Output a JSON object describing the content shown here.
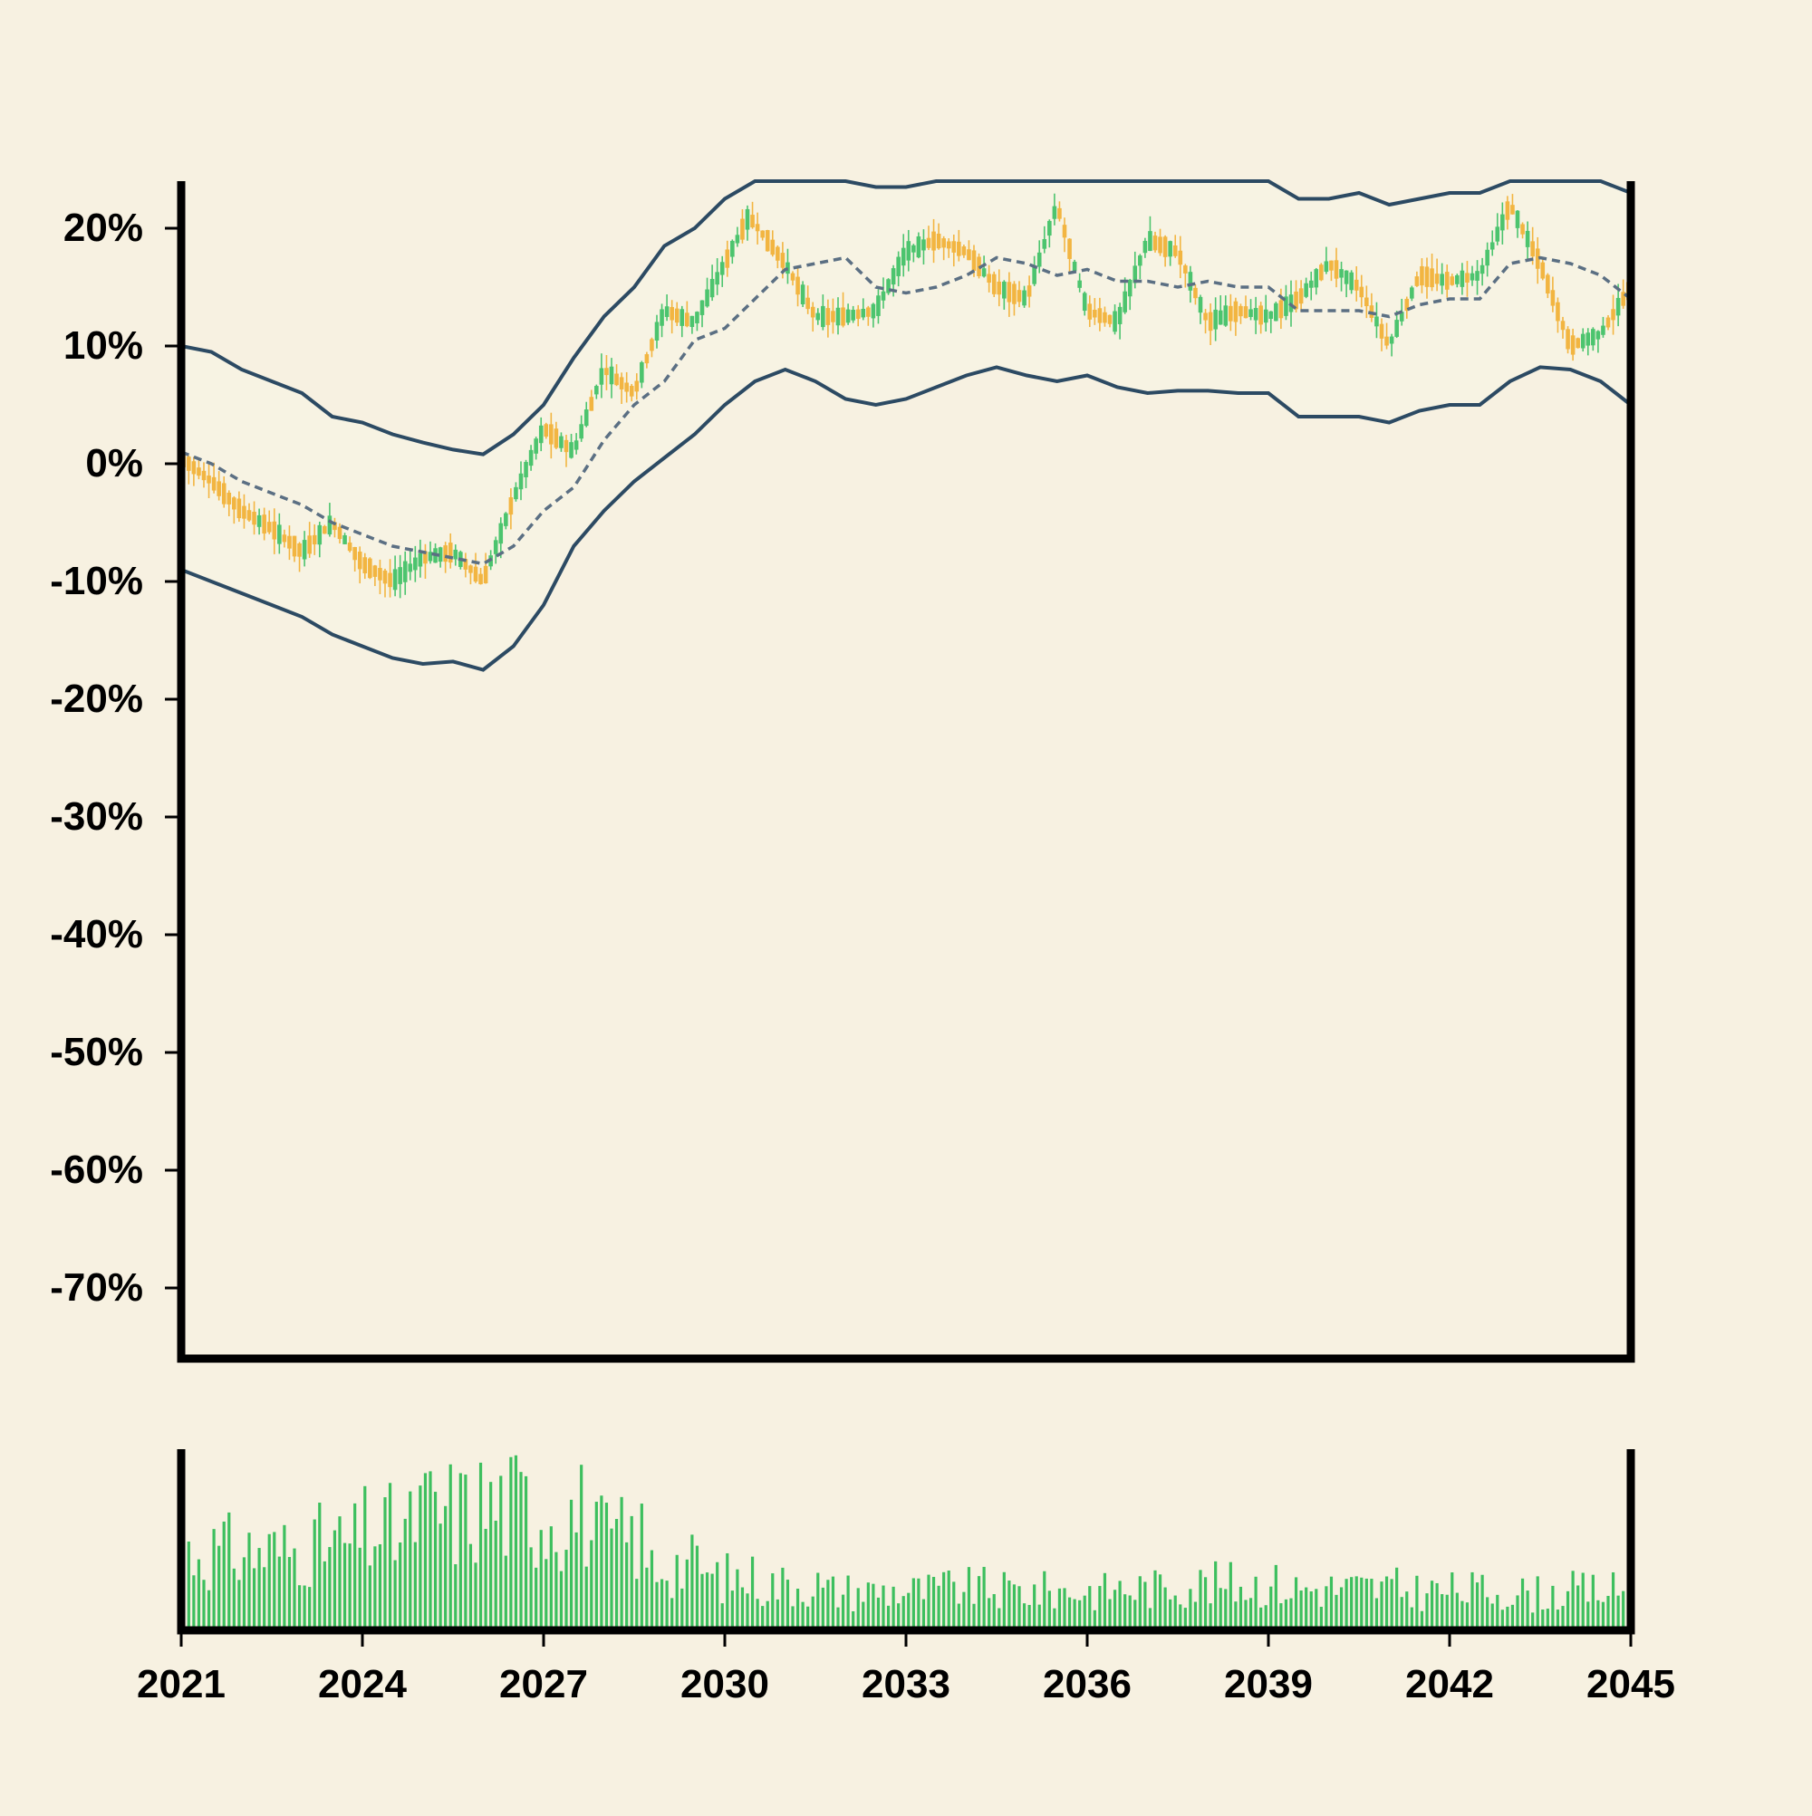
{
  "chart_data": [
    {
      "type": "candlestick",
      "panel": "price",
      "title": "",
      "xlabel": "",
      "ylabel": "",
      "ytick_labels": [
        "-70%",
        "-60%",
        "-50%",
        "-40%",
        "-30%",
        "-20%",
        "-10%",
        "0%",
        "10%",
        "20%"
      ],
      "yticks": [
        -70,
        -60,
        -50,
        -40,
        -30,
        -20,
        -10,
        0,
        10,
        20
      ],
      "ylim": [
        -76,
        24
      ],
      "xlim": [
        2021,
        2045
      ],
      "grid": false,
      "colors": {
        "up": "#4cc46e",
        "down": "#f2b541",
        "band": "#2c4a63",
        "midline": "#5b6f83",
        "band_fill": "#f7f3e3",
        "background": "#f7f1e1",
        "axis": "#000000"
      },
      "price_path": {
        "x": [
          2021.0,
          2021.5,
          2022.0,
          2022.5,
          2023.0,
          2023.5,
          2024.0,
          2024.5,
          2025.0,
          2025.5,
          2026.0,
          2026.5,
          2027.0,
          2027.5,
          2028.0,
          2028.5,
          2029.0,
          2029.5,
          2030.0,
          2030.4,
          2031.0,
          2031.5,
          2032.0,
          2032.5,
          2033.0,
          2033.5,
          2034.0,
          2034.5,
          2035.0,
          2035.5,
          2036.0,
          2036.5,
          2037.0,
          2037.5,
          2038.0,
          2038.5,
          2039.0,
          2039.5,
          2040.0,
          2040.5,
          2041.0,
          2041.5,
          2042.0,
          2042.5,
          2043.0,
          2043.5,
          2044.0,
          2044.5,
          2045.0
        ],
        "y": [
          0.5,
          -1.5,
          -4,
          -5.5,
          -7.5,
          -5,
          -8.5,
          -10,
          -8,
          -7.5,
          -10,
          -3,
          3,
          1,
          8,
          6,
          13,
          12,
          17,
          21,
          17,
          12.5,
          12.5,
          13,
          18,
          19,
          18,
          15,
          14,
          22,
          13,
          12,
          19,
          18,
          12,
          13,
          12.5,
          14,
          17,
          15,
          10,
          16,
          15.5,
          16,
          22,
          17,
          10,
          11,
          15
        ]
      },
      "mid_line": {
        "x": [
          2021.0,
          2021.5,
          2022.0,
          2022.5,
          2023.0,
          2023.5,
          2024.0,
          2024.5,
          2025.0,
          2025.5,
          2026.0,
          2026.5,
          2027.0,
          2027.5,
          2028.0,
          2028.5,
          2029.0,
          2029.5,
          2030.0,
          2030.5,
          2031.0,
          2031.5,
          2032.0,
          2032.5,
          2033.0,
          2033.5,
          2034.0,
          2034.5,
          2035.0,
          2035.5,
          2036.0,
          2036.5,
          2037.0,
          2037.5,
          2038.0,
          2038.5,
          2039.0,
          2039.5,
          2040.0,
          2040.5,
          2041.0,
          2041.5,
          2042.0,
          2042.5,
          2043.0,
          2043.5,
          2044.0,
          2044.5,
          2045.0
        ],
        "y": [
          1,
          0,
          -1.5,
          -2.5,
          -3.5,
          -5,
          -6,
          -7,
          -7.5,
          -8,
          -8.5,
          -7,
          -4,
          -2,
          2,
          5,
          7,
          10.5,
          11.5,
          14,
          16.5,
          17,
          17.5,
          15,
          14.5,
          15,
          16,
          17.5,
          17,
          16,
          16.5,
          15.5,
          15.5,
          15,
          15.5,
          15,
          15,
          13,
          13,
          13,
          12.5,
          13.5,
          14,
          14,
          17,
          17.5,
          17,
          16,
          14
        ]
      },
      "upper_band": {
        "x": [
          2021.0,
          2021.5,
          2022.0,
          2022.5,
          2023.0,
          2023.5,
          2024.0,
          2024.5,
          2025.0,
          2025.5,
          2026.0,
          2026.5,
          2027.0,
          2027.5,
          2028.0,
          2028.5,
          2029.0,
          2029.5,
          2030.0,
          2030.5,
          2031.0,
          2031.5,
          2032.0,
          2032.5,
          2033.0,
          2033.5,
          2034.0,
          2034.5,
          2035.0,
          2035.5,
          2036.0,
          2036.5,
          2037.0,
          2037.5,
          2038.0,
          2038.5,
          2039.0,
          2039.5,
          2040.0,
          2040.5,
          2041.0,
          2041.5,
          2042.0,
          2042.5,
          2043.0,
          2043.5,
          2044.0,
          2044.5,
          2045.0
        ],
        "y": [
          10,
          9.5,
          8,
          7,
          6,
          4,
          3.5,
          2.5,
          1.8,
          1.2,
          0.8,
          2.5,
          5,
          9,
          12.5,
          15,
          18.5,
          20,
          22.5,
          24,
          24,
          24,
          24,
          23.5,
          23.5,
          24,
          24,
          24,
          24,
          24,
          24,
          24,
          24,
          24,
          24,
          24,
          24,
          22.5,
          22.5,
          23,
          22,
          22.5,
          23,
          23,
          24,
          24,
          24,
          24,
          23
        ]
      },
      "lower_band": {
        "x": [
          2021.0,
          2021.5,
          2022.0,
          2022.5,
          2023.0,
          2023.5,
          2024.0,
          2024.5,
          2025.0,
          2025.5,
          2026.0,
          2026.5,
          2027.0,
          2027.5,
          2028.0,
          2028.5,
          2029.0,
          2029.5,
          2030.0,
          2030.5,
          2031.0,
          2031.5,
          2032.0,
          2032.5,
          2033.0,
          2033.5,
          2034.0,
          2034.5,
          2035.0,
          2035.5,
          2036.0,
          2036.5,
          2037.0,
          2037.5,
          2038.0,
          2038.5,
          2039.0,
          2039.5,
          2040.0,
          2040.5,
          2041.0,
          2041.5,
          2042.0,
          2042.5,
          2043.0,
          2043.5,
          2044.0,
          2044.5,
          2045.0
        ],
        "y": [
          -9,
          -10,
          -11,
          -12,
          -13,
          -14.5,
          -15.5,
          -16.5,
          -17,
          -16.8,
          -17.5,
          -15.5,
          -12,
          -7,
          -4,
          -1.5,
          0.5,
          2.5,
          5,
          7,
          8,
          7,
          5.5,
          5,
          5.5,
          6.5,
          7.5,
          8.2,
          7.5,
          7,
          7.5,
          6.5,
          6,
          6.2,
          6.2,
          6,
          6,
          4,
          4,
          4,
          3.5,
          4.5,
          5,
          5,
          7,
          8.2,
          8,
          7,
          5
        ]
      }
    },
    {
      "type": "bar",
      "panel": "volume",
      "title": "",
      "xlabel": "",
      "ylabel": "",
      "xtick_labels": [
        "2021",
        "2024",
        "2027",
        "2030",
        "2033",
        "2036",
        "2039",
        "2042",
        "2045"
      ],
      "xticks": [
        2021,
        2024,
        2027,
        2030,
        2033,
        2036,
        2039,
        2042,
        2045
      ],
      "xlim": [
        2021,
        2045
      ],
      "bar_color": "#3dbf5e",
      "count": 288,
      "relative_volume_profile": [
        0.6,
        0.6,
        0.65,
        0.75,
        0.9,
        0.95,
        0.9,
        0.7,
        0.5,
        0.4,
        0.35,
        0.3,
        0.3,
        0.32,
        0.3,
        0.3,
        0.32,
        0.35,
        0.35,
        0.32,
        0.32,
        0.3,
        0.3,
        0.28,
        0.3
      ]
    }
  ]
}
